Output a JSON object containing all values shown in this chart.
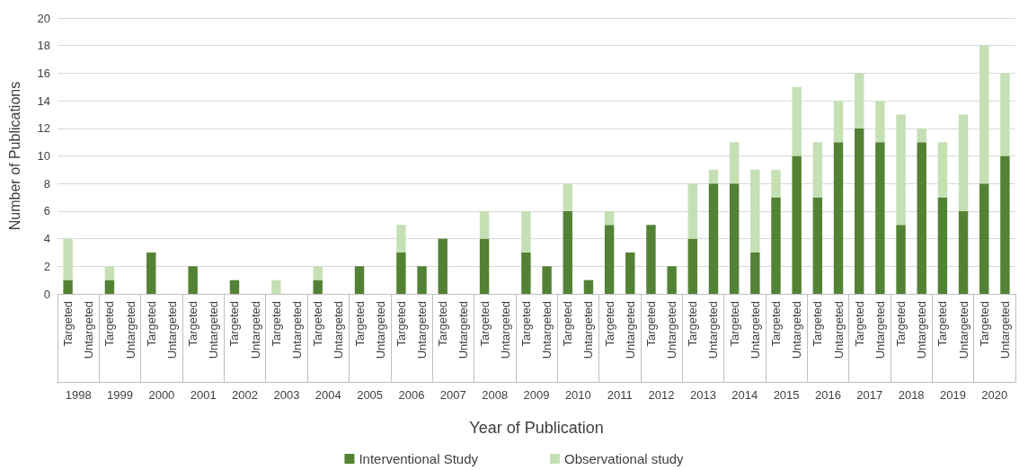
{
  "chart_data": {
    "type": "bar",
    "stacked": true,
    "categories": [
      "Targeted",
      "Untargeted",
      "Targeted",
      "Untargeted",
      "Targeted",
      "Untargeted",
      "Targeted",
      "Untargeted",
      "Targeted",
      "Untargeted",
      "Targeted",
      "Untargeted",
      "Targeted",
      "Untargeted",
      "Targeted",
      "Untargeted",
      "Targeted",
      "Untargeted",
      "Targeted",
      "Untargeted",
      "Targeted",
      "Untargeted",
      "Targeted",
      "Untargeted",
      "Targeted",
      "Untargeted",
      "Targeted",
      "Untargeted",
      "Targeted",
      "Untargeted",
      "Targeted",
      "Untargeted",
      "Targeted",
      "Untargeted",
      "Targeted",
      "Untargeted",
      "Targeted",
      "Untargeted",
      "Targeted",
      "Untargeted",
      "Targeted",
      "Untargeted",
      "Targeted",
      "Untargeted",
      "Targeted",
      "Untargeted"
    ],
    "annotations": [
      "1998",
      "1999",
      "2000",
      "2001",
      "2002",
      "2003",
      "2004",
      "2005",
      "2006",
      "2007",
      "2008",
      "2009",
      "2010",
      "2011",
      "2012",
      "2013",
      "2014",
      "2015",
      "2016",
      "2017",
      "2018",
      "2019",
      "2020"
    ],
    "series": [
      {
        "name": "Interventional Study",
        "color": "#548235",
        "values": [
          1,
          0,
          1,
          0,
          3,
          0,
          2,
          0,
          1,
          0,
          0,
          0,
          1,
          0,
          2,
          0,
          3,
          2,
          4,
          0,
          4,
          0,
          3,
          2,
          6,
          1,
          5,
          3,
          5,
          2,
          4,
          8,
          8,
          3,
          7,
          10,
          7,
          11,
          12,
          11,
          5,
          11,
          7,
          6,
          8,
          10
        ]
      },
      {
        "name": "Observational study",
        "color": "#c5e0b4",
        "values": [
          3,
          0,
          1,
          0,
          0,
          0,
          0,
          0,
          0,
          0,
          1,
          0,
          1,
          0,
          0,
          0,
          2,
          0,
          0,
          0,
          2,
          0,
          3,
          0,
          2,
          0,
          1,
          0,
          0,
          0,
          4,
          1,
          3,
          6,
          2,
          5,
          4,
          3,
          4,
          3,
          8,
          1,
          4,
          7,
          10,
          6
        ]
      }
    ],
    "xlabel": "Year of Publication",
    "ylabel": "Number of Publications",
    "ylim": [
      0,
      20
    ],
    "yticks": [
      0,
      2,
      4,
      6,
      8,
      10,
      12,
      14,
      16,
      18,
      20
    ],
    "grid": "y",
    "legend": "bottom"
  }
}
